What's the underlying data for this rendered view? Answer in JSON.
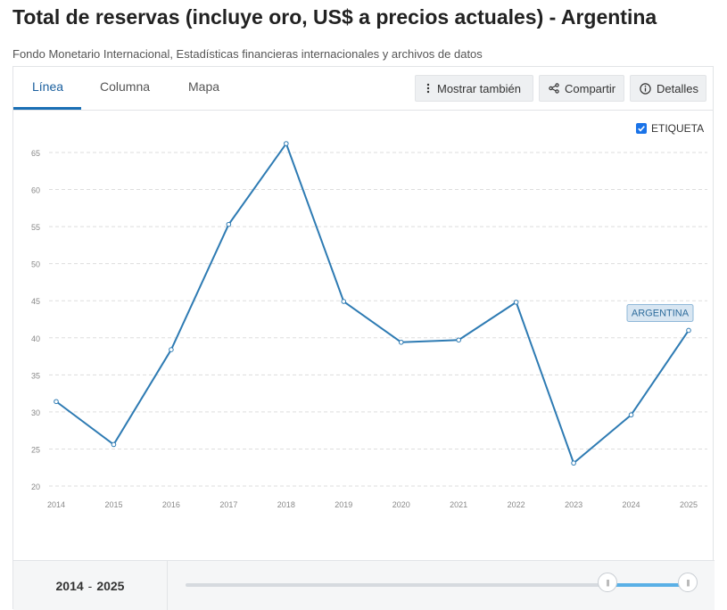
{
  "header": {
    "title": "Total de reservas (incluye oro, US$ a precios actuales) - Argentina",
    "subtitle": "Fondo Monetario Internacional, Estadísticas financieras internacionales y archivos de datos"
  },
  "tabs": [
    {
      "label": "Línea",
      "active": true
    },
    {
      "label": "Columna",
      "active": false
    },
    {
      "label": "Mapa",
      "active": false
    }
  ],
  "toolbar": {
    "more_label": "Mostrar también",
    "share_label": "Compartir",
    "details_label": "Detalles"
  },
  "label_toggle": {
    "label": "ETIQUETA",
    "checked": true
  },
  "range": {
    "start": "2014",
    "end": "2025",
    "separator": "-",
    "start_fraction": 0.84,
    "end_fraction": 1.0
  },
  "colors": {
    "line": "#2e7bb3",
    "accent": "#1a73e8",
    "grid": "#dddddd",
    "tag_bg": "#d8e6f2",
    "tag_border": "#8fb8d8",
    "tag_text": "#2e6c9c"
  },
  "chart_data": {
    "type": "line",
    "title": "",
    "xlabel": "",
    "ylabel": "",
    "x": [
      "2014",
      "2015",
      "2016",
      "2017",
      "2018",
      "2019",
      "2020",
      "2021",
      "2022",
      "2023",
      "2024",
      "2025"
    ],
    "series": [
      {
        "name": "ARGENTINA",
        "values": [
          31.4,
          25.6,
          38.4,
          55.3,
          66.2,
          44.9,
          39.4,
          39.7,
          44.8,
          23.1,
          29.6,
          41.0
        ]
      }
    ],
    "ylim": [
      20,
      65
    ],
    "yticks": [
      20,
      25,
      30,
      35,
      40,
      45,
      50,
      55,
      60,
      65
    ],
    "grid": true,
    "legend": "end-label"
  }
}
